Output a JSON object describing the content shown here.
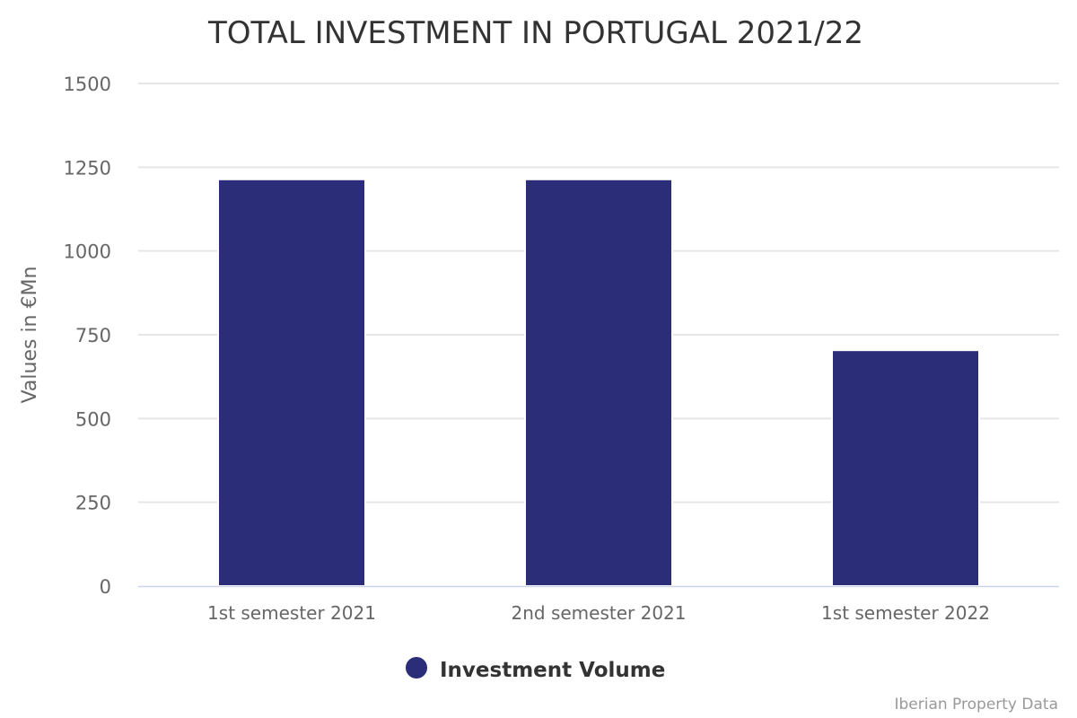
{
  "chart_data": {
    "type": "bar",
    "title": "TOTAL INVESTMENT IN PORTUGAL 2021/22",
    "xlabel": "",
    "ylabel": "Values in €Mn",
    "categories": [
      "1st semester 2021",
      "2nd semester 2021",
      "1st semester 2022"
    ],
    "series": [
      {
        "name": "Investment Volume",
        "values": [
          1214,
          1214,
          704
        ],
        "color": "#2c2d78"
      }
    ],
    "ylim": [
      0,
      1500
    ],
    "yticks": [
      "0",
      "250",
      "500",
      "750",
      "1000",
      "1250",
      "1500"
    ],
    "grid": true,
    "legend": "bottom-center",
    "credits": "Iberian Property Data"
  }
}
